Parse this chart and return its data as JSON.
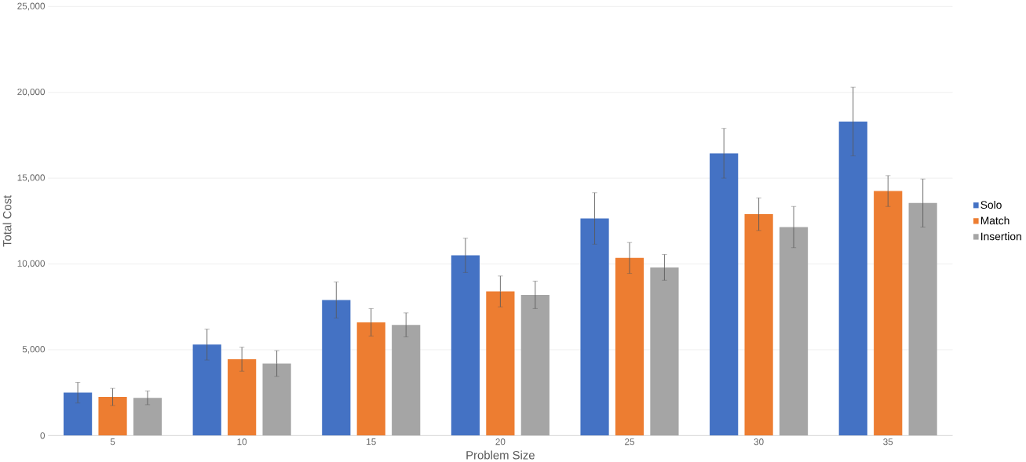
{
  "chart_data": {
    "type": "bar",
    "xlabel": "Problem Size",
    "ylabel": "Total Cost",
    "categories": [
      "5",
      "10",
      "15",
      "20",
      "25",
      "30",
      "35"
    ],
    "series": [
      {
        "name": "Solo",
        "color": "#4472c4",
        "values": [
          2500,
          5300,
          7900,
          10500,
          12650,
          16450,
          18300
        ],
        "errors": [
          600,
          900,
          1050,
          1000,
          1500,
          1450,
          2000
        ]
      },
      {
        "name": "Match",
        "color": "#ed7d31",
        "values": [
          2250,
          4450,
          6600,
          8400,
          10350,
          12900,
          14250
        ],
        "errors": [
          500,
          700,
          800,
          900,
          900,
          950,
          900
        ]
      },
      {
        "name": "Insertion",
        "color": "#a5a5a5",
        "values": [
          2200,
          4200,
          6450,
          8200,
          9800,
          12150,
          13550
        ],
        "errors": [
          400,
          750,
          700,
          800,
          750,
          1200,
          1400
        ]
      }
    ],
    "ylim": [
      0,
      25000
    ],
    "yticks": [
      {
        "value": 0,
        "label": "0"
      },
      {
        "value": 5000,
        "label": "5,000"
      },
      {
        "value": 10000,
        "label": "10,000"
      },
      {
        "value": 15000,
        "label": "15,000"
      },
      {
        "value": 20000,
        "label": "20,000"
      },
      {
        "value": 25000,
        "label": "25,000"
      }
    ],
    "grid": "y",
    "legend": "right"
  }
}
